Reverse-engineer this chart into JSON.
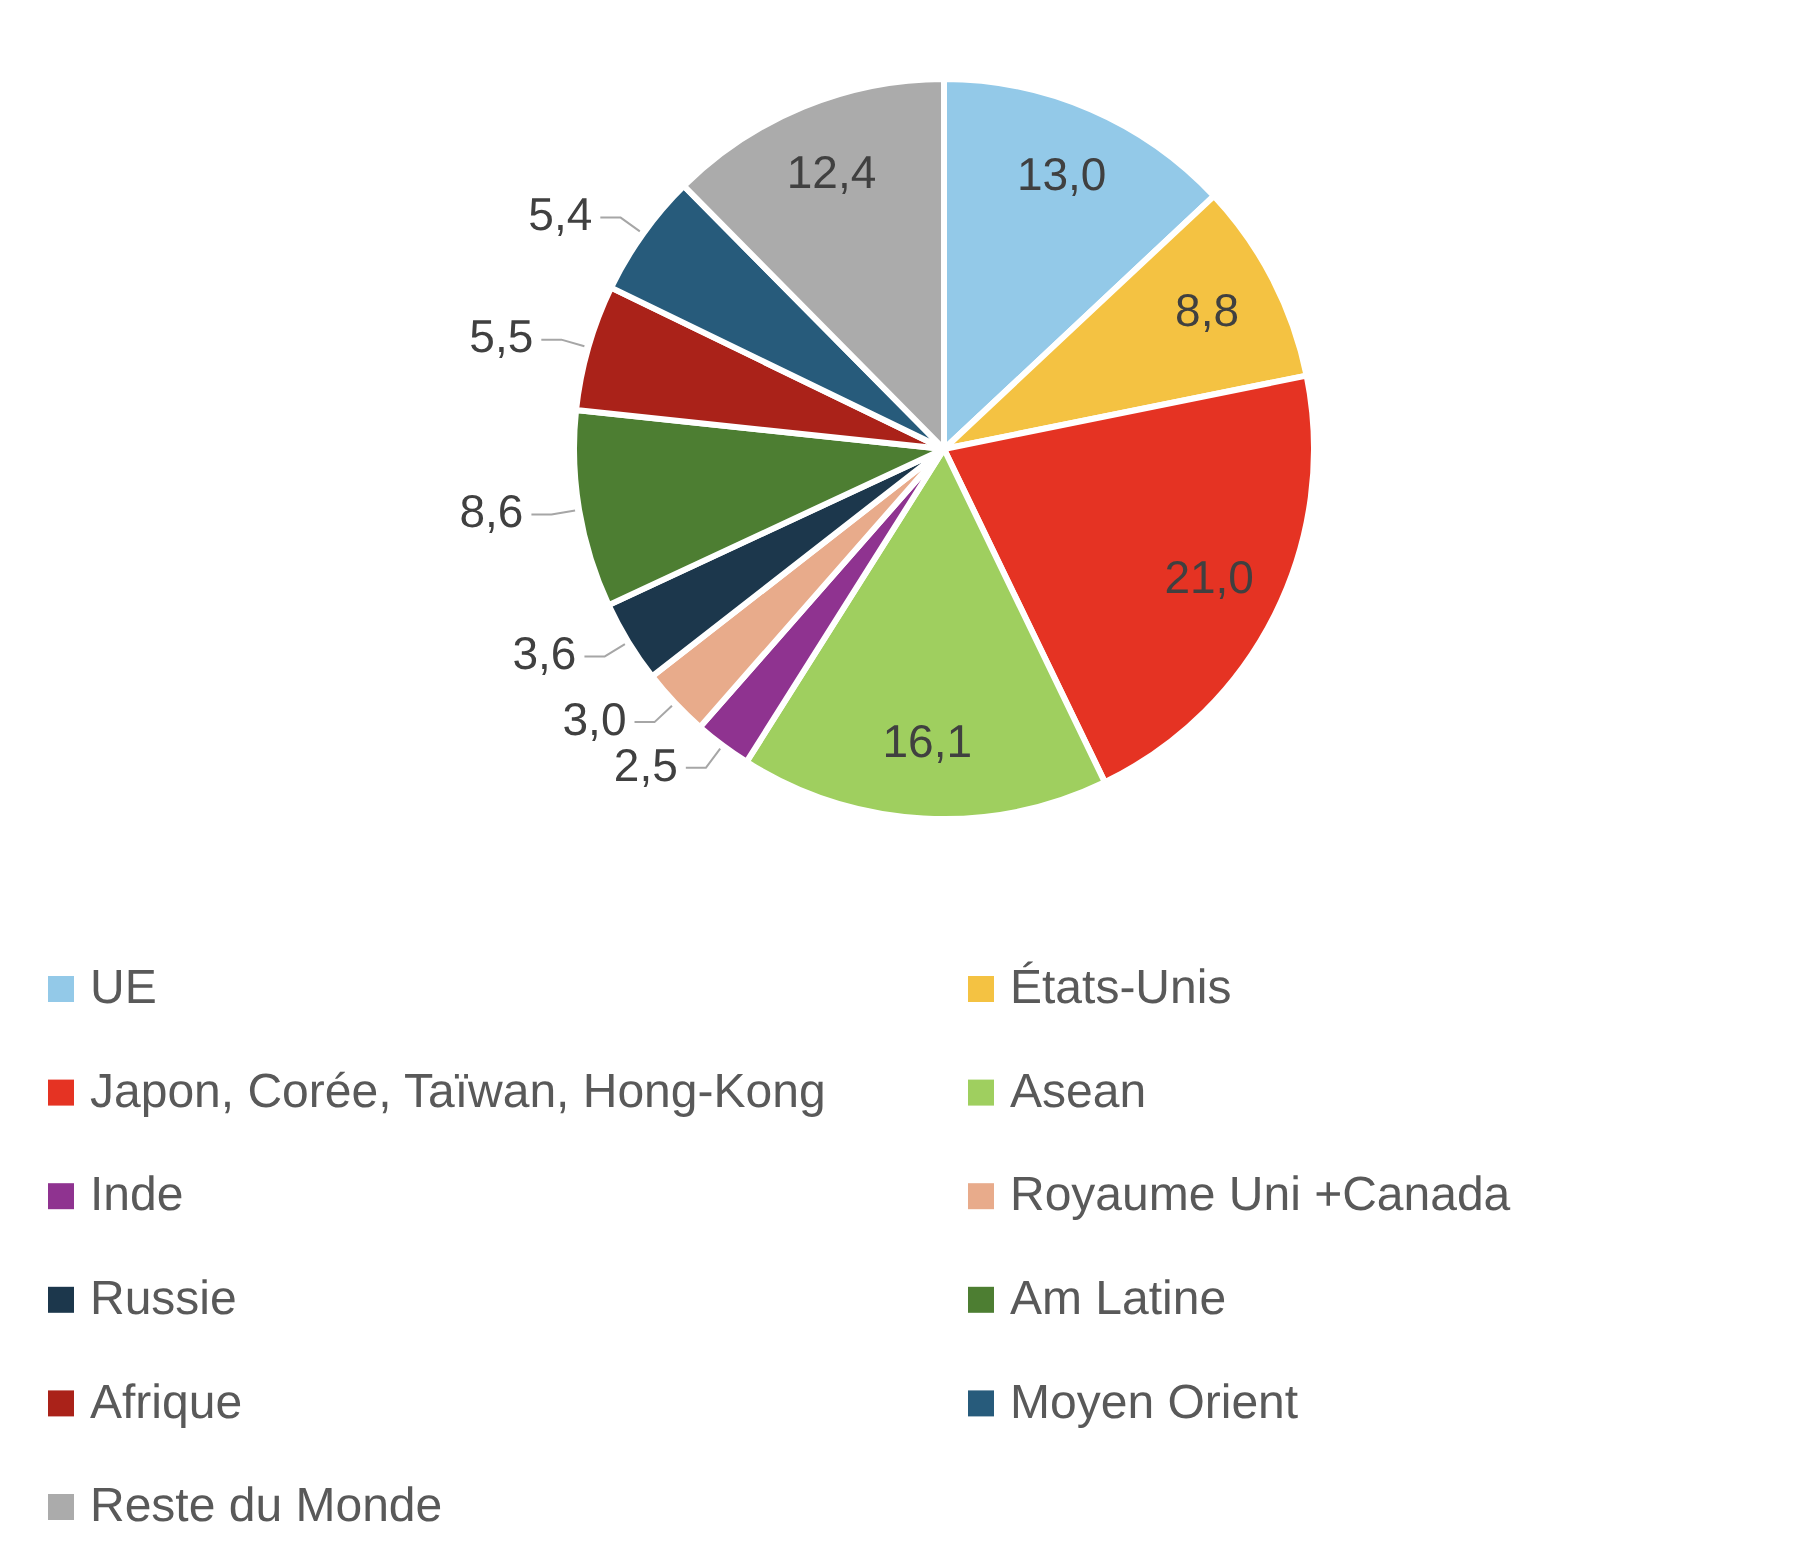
{
  "chart_data": {
    "type": "pie",
    "categories": [
      "UE",
      "États-Unis",
      "Japon, Corée, Taïwan, Hong-Kong",
      "Asean",
      "Inde",
      "Royaume Uni +Canada",
      "Russie",
      "Am Latine",
      "Afrique",
      "Moyen Orient",
      "Reste du Monde"
    ],
    "values": [
      13.0,
      8.8,
      21.0,
      16.1,
      2.5,
      3.0,
      3.6,
      8.6,
      5.5,
      5.4,
      12.4
    ],
    "colors": [
      "#93c9e8",
      "#f4c242",
      "#e53323",
      "#9fcf5f",
      "#8f3390",
      "#e8ab8b",
      "#1c374c",
      "#4d7e32",
      "#aa2219",
      "#275b7b",
      "#ababab"
    ],
    "value_labels": [
      "13,0",
      "8,8",
      "21,0",
      "16,1",
      "2,5",
      "3,0",
      "3,6",
      "8,6",
      "5,5",
      "5,4",
      "12,4"
    ],
    "legend": "bottom"
  }
}
